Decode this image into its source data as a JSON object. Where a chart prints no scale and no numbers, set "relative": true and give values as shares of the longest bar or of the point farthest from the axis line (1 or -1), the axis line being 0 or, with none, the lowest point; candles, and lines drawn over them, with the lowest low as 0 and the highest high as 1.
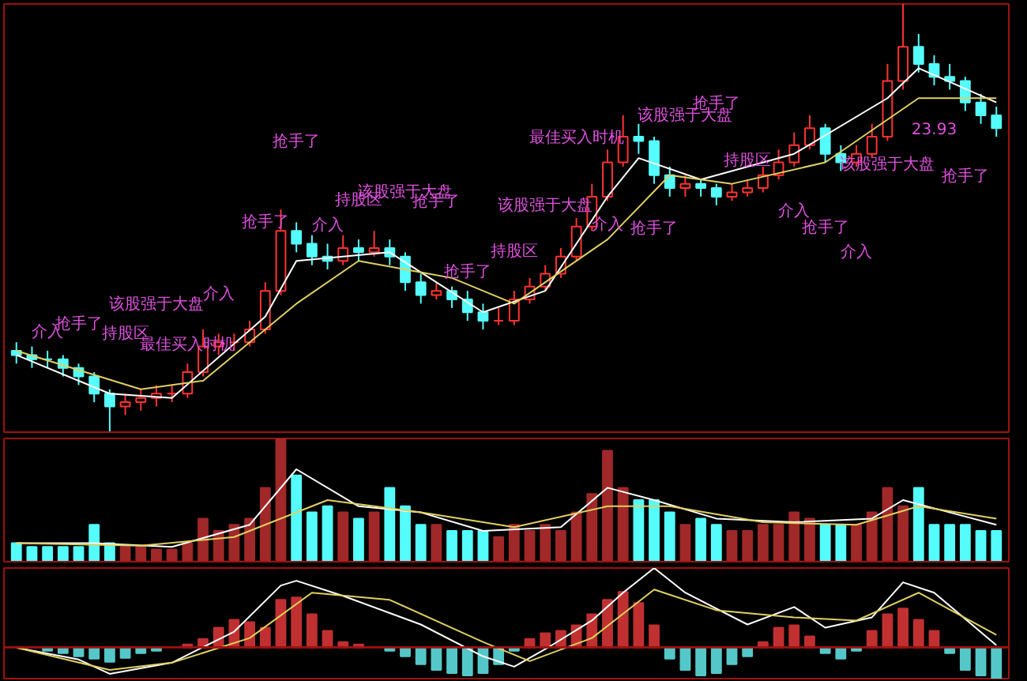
{
  "chart_data": [
    {
      "type": "candlestick",
      "relative": true,
      "categories": [
        null,
        null,
        null,
        null,
        null,
        null,
        null,
        null,
        null,
        null,
        null,
        null,
        null,
        null,
        null,
        null,
        null,
        null,
        null,
        null,
        null,
        null,
        null,
        null,
        null,
        null,
        null,
        null,
        null,
        null,
        null,
        null,
        null,
        null,
        null,
        null,
        null,
        null,
        null,
        null,
        null,
        null,
        null,
        null,
        null,
        null,
        null,
        null,
        null,
        null,
        null,
        null,
        null,
        null,
        null,
        null,
        null,
        null,
        null,
        null,
        null,
        null,
        null,
        null
      ],
      "ohlc": [
        [
          0.19,
          0.21,
          0.16,
          0.18
        ],
        [
          0.18,
          0.2,
          0.15,
          0.17
        ],
        [
          0.17,
          0.19,
          0.15,
          0.17
        ],
        [
          0.17,
          0.18,
          0.13,
          0.15
        ],
        [
          0.15,
          0.16,
          0.11,
          0.13
        ],
        [
          0.13,
          0.14,
          0.07,
          0.09
        ],
        [
          0.09,
          0.1,
          0,
          0.06
        ],
        [
          0.06,
          0.09,
          0.04,
          0.07
        ],
        [
          0.07,
          0.1,
          0.05,
          0.08
        ],
        [
          0.08,
          0.11,
          0.06,
          0.09
        ],
        [
          0.09,
          0.11,
          0.07,
          0.09
        ],
        [
          0.09,
          0.16,
          0.08,
          0.14
        ],
        [
          0.14,
          0.24,
          0.13,
          0.2
        ],
        [
          0.2,
          0.23,
          0.18,
          0.21
        ],
        [
          0.21,
          0.23,
          0.19,
          0.21
        ],
        [
          0.21,
          0.26,
          0.2,
          0.24
        ],
        [
          0.24,
          0.35,
          0.23,
          0.33
        ],
        [
          0.33,
          0.52,
          0.32,
          0.47
        ],
        [
          0.47,
          0.49,
          0.42,
          0.44
        ],
        [
          0.44,
          0.46,
          0.39,
          0.41
        ],
        [
          0.41,
          0.44,
          0.38,
          0.4
        ],
        [
          0.4,
          0.46,
          0.39,
          0.43
        ],
        [
          0.43,
          0.45,
          0.4,
          0.42
        ],
        [
          0.42,
          0.47,
          0.41,
          0.43
        ],
        [
          0.43,
          0.45,
          0.39,
          0.41
        ],
        [
          0.41,
          0.42,
          0.33,
          0.35
        ],
        [
          0.35,
          0.37,
          0.3,
          0.32
        ],
        [
          0.32,
          0.35,
          0.31,
          0.33
        ],
        [
          0.33,
          0.34,
          0.29,
          0.31
        ],
        [
          0.31,
          0.33,
          0.26,
          0.28
        ],
        [
          0.28,
          0.3,
          0.24,
          0.26
        ],
        [
          0.26,
          0.29,
          0.25,
          0.26
        ],
        [
          0.26,
          0.33,
          0.25,
          0.31
        ],
        [
          0.31,
          0.36,
          0.3,
          0.34
        ],
        [
          0.34,
          0.39,
          0.33,
          0.37
        ],
        [
          0.37,
          0.43,
          0.36,
          0.41
        ],
        [
          0.41,
          0.5,
          0.4,
          0.48
        ],
        [
          0.48,
          0.58,
          0.47,
          0.55
        ],
        [
          0.55,
          0.66,
          0.54,
          0.63
        ],
        [
          0.63,
          0.74,
          0.62,
          0.69
        ],
        [
          0.69,
          0.72,
          0.65,
          0.68
        ],
        [
          0.68,
          0.69,
          0.58,
          0.6
        ],
        [
          0.6,
          0.62,
          0.55,
          0.57
        ],
        [
          0.57,
          0.6,
          0.55,
          0.58
        ],
        [
          0.58,
          0.59,
          0.55,
          0.57
        ],
        [
          0.57,
          0.58,
          0.53,
          0.55
        ],
        [
          0.55,
          0.58,
          0.54,
          0.56
        ],
        [
          0.56,
          0.59,
          0.55,
          0.57
        ],
        [
          0.57,
          0.62,
          0.56,
          0.6
        ],
        [
          0.6,
          0.66,
          0.59,
          0.63
        ],
        [
          0.63,
          0.7,
          0.62,
          0.67
        ],
        [
          0.67,
          0.74,
          0.66,
          0.71
        ],
        [
          0.71,
          0.72,
          0.63,
          0.65
        ],
        [
          0.65,
          0.67,
          0.61,
          0.63
        ],
        [
          0.63,
          0.67,
          0.62,
          0.65
        ],
        [
          0.65,
          0.72,
          0.64,
          0.69
        ],
        [
          0.69,
          0.86,
          0.68,
          0.82
        ],
        [
          0.82,
          1,
          0.8,
          0.9
        ],
        [
          0.9,
          0.93,
          0.84,
          0.86
        ],
        [
          0.86,
          0.88,
          0.81,
          0.83
        ],
        [
          0.83,
          0.86,
          0.8,
          0.82
        ],
        [
          0.82,
          0.83,
          0.75,
          0.77
        ],
        [
          0.77,
          0.79,
          0.72,
          0.74
        ],
        [
          0.74,
          0.76,
          0.69,
          0.71
        ]
      ],
      "colors": [
        "#54fcfc",
        "#54fcfc",
        "#54fcfc",
        "#54fcfc",
        "#54fcfc",
        "#54fcfc",
        "#54fcfc",
        "#ff3232",
        "#ff3232",
        "#ff3232",
        "#ff3232",
        "#ff3232",
        "#ff3232",
        "#ff3232",
        "#ff3232",
        "#ff3232",
        "#ff3232",
        "#ff3232",
        "#54fcfc",
        "#54fcfc",
        "#54fcfc",
        "#ff3232",
        "#54fcfc",
        "#ff3232",
        "#54fcfc",
        "#54fcfc",
        "#54fcfc",
        "#ff3232",
        "#54fcfc",
        "#54fcfc",
        "#54fcfc",
        "#ff3232",
        "#ff3232",
        "#ff3232",
        "#ff3232",
        "#ff3232",
        "#ff3232",
        "#ff3232",
        "#ff3232",
        "#ff3232",
        "#54fcfc",
        "#54fcfc",
        "#54fcfc",
        "#ff3232",
        "#54fcfc",
        "#54fcfc",
        "#ff3232",
        "#ff3232",
        "#ff3232",
        "#ff3232",
        "#ff3232",
        "#ff3232",
        "#54fcfc",
        "#54fcfc",
        "#ff3232",
        "#ff3232",
        "#ff3232",
        "#ff3232",
        "#54fcfc",
        "#54fcfc",
        "#54fcfc",
        "#54fcfc",
        "#54fcfc",
        "#54fcfc"
      ],
      "series": [
        {
          "type": "line",
          "color": "#ffffff",
          "values": [
            0.18,
            null,
            null,
            null,
            null,
            null,
            0.09,
            null,
            null,
            null,
            0.08,
            null,
            null,
            null,
            null,
            null,
            0.27,
            null,
            0.4,
            null,
            null,
            null,
            null,
            null,
            0.42,
            null,
            null,
            null,
            null,
            null,
            0.28,
            null,
            null,
            null,
            0.33,
            null,
            null,
            null,
            0.55,
            null,
            0.64,
            null,
            null,
            null,
            0.59,
            null,
            null,
            null,
            null,
            null,
            0.65,
            null,
            null,
            null,
            null,
            null,
            0.78,
            null,
            0.85,
            null,
            null,
            null,
            null,
            0.77
          ]
        },
        {
          "type": "line",
          "color": "#e0d060",
          "values": [
            0.19,
            null,
            null,
            null,
            null,
            null,
            null,
            null,
            0.1,
            null,
            null,
            null,
            0.12,
            null,
            null,
            null,
            null,
            null,
            0.3,
            null,
            null,
            null,
            0.4,
            null,
            null,
            null,
            null,
            null,
            0.36,
            null,
            null,
            null,
            0.3,
            null,
            null,
            null,
            null,
            null,
            0.45,
            null,
            null,
            null,
            0.6,
            null,
            null,
            null,
            0.58,
            null,
            null,
            null,
            null,
            null,
            0.63,
            null,
            null,
            null,
            null,
            null,
            0.78,
            null,
            null,
            null,
            null,
            0.78
          ]
        }
      ],
      "annotations": [
        "介入",
        "抢手了",
        "持股区",
        "该股强于大盘",
        "最佳买入时机",
        "介入",
        "抢手了",
        "抢手了",
        "介入",
        "持股区",
        "该股强于大盘",
        "抢手了",
        "抢手了",
        "持股区",
        "该股强于大盘",
        "最佳买入时机",
        "介入",
        "抢手了",
        "该股强于大盘",
        "抢手了",
        "持股区",
        "介入",
        "抢手了",
        "介入",
        "该股强于大盘",
        "23.93",
        "抢手了"
      ]
    },
    {
      "type": "bar",
      "relative": true,
      "categories": [
        null,
        null,
        null,
        null,
        null,
        null,
        null,
        null,
        null,
        null,
        null,
        null,
        null,
        null,
        null,
        null,
        null,
        null,
        null,
        null,
        null,
        null,
        null,
        null,
        null,
        null,
        null,
        null,
        null,
        null,
        null,
        null,
        null,
        null,
        null,
        null,
        null,
        null,
        null,
        null,
        null,
        null,
        null,
        null,
        null,
        null,
        null,
        null,
        null,
        null,
        null,
        null,
        null,
        null,
        null,
        null,
        null,
        null,
        null,
        null,
        null,
        null,
        null,
        null
      ],
      "series": [
        {
          "type": "bar",
          "values": [
            0.15,
            0.12,
            0.12,
            0.12,
            0.12,
            0.3,
            0.15,
            0.12,
            0.12,
            0.1,
            0.1,
            0.15,
            0.35,
            0.25,
            0.3,
            0.35,
            0.6,
            1,
            0.7,
            0.4,
            0.45,
            0.4,
            0.35,
            0.4,
            0.6,
            0.45,
            0.3,
            0.3,
            0.25,
            0.25,
            0.25,
            0.2,
            0.3,
            0.25,
            0.3,
            0.25,
            0.4,
            0.55,
            0.9,
            0.6,
            0.5,
            0.5,
            0.4,
            0.3,
            0.35,
            0.3,
            0.25,
            0.25,
            0.3,
            0.3,
            0.4,
            0.35,
            0.3,
            0.3,
            0.3,
            0.4,
            0.6,
            0.45,
            0.6,
            0.3,
            0.3,
            0.3,
            0.25,
            0.25
          ],
          "colors": [
            "#54fcfc",
            "#54fcfc",
            "#54fcfc",
            "#54fcfc",
            "#54fcfc",
            "#54fcfc",
            "#54fcfc",
            "#a02828",
            "#a02828",
            "#a02828",
            "#a02828",
            "#a02828",
            "#a02828",
            "#a02828",
            "#a02828",
            "#a02828",
            "#a02828",
            "#a02828",
            "#54fcfc",
            "#54fcfc",
            "#54fcfc",
            "#a02828",
            "#54fcfc",
            "#a02828",
            "#54fcfc",
            "#54fcfc",
            "#54fcfc",
            "#a02828",
            "#54fcfc",
            "#54fcfc",
            "#54fcfc",
            "#a02828",
            "#a02828",
            "#a02828",
            "#a02828",
            "#a02828",
            "#a02828",
            "#a02828",
            "#a02828",
            "#a02828",
            "#54fcfc",
            "#54fcfc",
            "#54fcfc",
            "#a02828",
            "#54fcfc",
            "#54fcfc",
            "#a02828",
            "#a02828",
            "#a02828",
            "#a02828",
            "#a02828",
            "#a02828",
            "#54fcfc",
            "#54fcfc",
            "#a02828",
            "#a02828",
            "#a02828",
            "#a02828",
            "#54fcfc",
            "#54fcfc",
            "#54fcfc",
            "#54fcfc",
            "#54fcfc",
            "#54fcfc"
          ]
        },
        {
          "type": "line",
          "color": "#ffffff",
          "values": [
            0.15,
            null,
            null,
            null,
            null,
            0.15,
            null,
            null,
            null,
            null,
            0.12,
            null,
            null,
            null,
            null,
            0.3,
            null,
            null,
            0.75,
            null,
            null,
            null,
            0.45,
            null,
            null,
            null,
            0.4,
            null,
            null,
            null,
            0.25,
            null,
            null,
            null,
            null,
            0.28,
            null,
            null,
            0.6,
            null,
            null,
            0.5,
            null,
            null,
            null,
            0.35,
            null,
            null,
            null,
            null,
            0.32,
            null,
            null,
            null,
            null,
            0.35,
            null,
            0.5,
            null,
            null,
            0.4,
            null,
            null,
            0.3
          ]
        },
        {
          "type": "line",
          "color": "#e0d060",
          "values": [
            0.15,
            null,
            null,
            null,
            null,
            null,
            null,
            null,
            0.13,
            null,
            null,
            null,
            null,
            null,
            0.2,
            null,
            null,
            null,
            null,
            null,
            0.5,
            null,
            null,
            null,
            null,
            null,
            0.4,
            null,
            null,
            null,
            null,
            null,
            0.28,
            null,
            null,
            null,
            null,
            null,
            0.45,
            null,
            null,
            null,
            0.45,
            null,
            null,
            null,
            null,
            null,
            0.32,
            null,
            null,
            null,
            null,
            null,
            0.3,
            null,
            null,
            null,
            0.45,
            null,
            null,
            null,
            null,
            0.35
          ]
        }
      ]
    },
    {
      "type": "bar",
      "relative": true,
      "ref_lines": [
        {
          "axis": "y",
          "value": 0,
          "color": "#a01010"
        }
      ],
      "categories": [
        null,
        null,
        null,
        null,
        null,
        null,
        null,
        null,
        null,
        null,
        null,
        null,
        null,
        null,
        null,
        null,
        null,
        null,
        null,
        null,
        null,
        null,
        null,
        null,
        null,
        null,
        null,
        null,
        null,
        null,
        null,
        null,
        null,
        null,
        null,
        null,
        null,
        null,
        null,
        null,
        null,
        null,
        null,
        null,
        null,
        null,
        null,
        null,
        null,
        null,
        null,
        null,
        null,
        null,
        null,
        null,
        null,
        null,
        null,
        null,
        null,
        null,
        null,
        null
      ],
      "series": [
        {
          "type": "bar",
          "color": "#c03030",
          "values": [
            null,
            null,
            null,
            null,
            null,
            null,
            null,
            null,
            null,
            null,
            null,
            0.04,
            0.11,
            0.25,
            0.35,
            0.32,
            0.25,
            0.6,
            0.63,
            0.42,
            0.21,
            0.07,
            0.04,
            null,
            null,
            null,
            null,
            null,
            null,
            null,
            null,
            null,
            null,
            0.11,
            0.18,
            0.21,
            0.28,
            0.42,
            0.6,
            0.7,
            0.56,
            0.28,
            null,
            null,
            null,
            null,
            null,
            null,
            0.07,
            0.25,
            0.28,
            0.14,
            null,
            null,
            null,
            0.21,
            0.42,
            0.49,
            0.35,
            0.21,
            null,
            null,
            null,
            null
          ]
        },
        {
          "type": "bar",
          "color": "#54c8c8",
          "values": [
            null,
            null,
            -0.04,
            -0.07,
            -0.11,
            -0.14,
            -0.18,
            -0.13,
            -0.07,
            -0.04,
            null,
            null,
            null,
            null,
            null,
            null,
            null,
            null,
            null,
            null,
            null,
            null,
            null,
            null,
            -0.04,
            -0.11,
            -0.21,
            -0.28,
            -0.32,
            -0.35,
            -0.32,
            -0.21,
            -0.04,
            null,
            null,
            null,
            null,
            null,
            null,
            null,
            null,
            null,
            -0.14,
            -0.28,
            -0.35,
            -0.32,
            -0.21,
            -0.11,
            null,
            null,
            null,
            null,
            -0.07,
            -0.14,
            -0.04,
            null,
            null,
            null,
            null,
            null,
            -0.07,
            -0.28,
            -0.35,
            -0.39
          ]
        },
        {
          "type": "line",
          "color": "#ffffff",
          "values": [
            0,
            null,
            null,
            null,
            -0.15,
            null,
            -0.33,
            null,
            null,
            null,
            -0.19,
            null,
            null,
            null,
            0.2,
            null,
            null,
            0.78,
            0.84,
            null,
            null,
            0.65,
            null,
            null,
            null,
            null,
            0.29,
            null,
            null,
            null,
            -0.11,
            null,
            -0.24,
            null,
            -0.02,
            null,
            null,
            0.34,
            null,
            0.69,
            null,
            1,
            null,
            0.69,
            null,
            null,
            null,
            0.29,
            null,
            null,
            0.51,
            null,
            0.25,
            null,
            null,
            0.38,
            null,
            0.82,
            null,
            0.69,
            null,
            null,
            null,
            0.03
          ]
        },
        {
          "type": "line",
          "color": "#e0d060",
          "values": [
            0,
            null,
            null,
            null,
            null,
            null,
            -0.28,
            null,
            null,
            null,
            -0.19,
            null,
            null,
            null,
            null,
            0.12,
            null,
            null,
            null,
            0.69,
            null,
            null,
            null,
            null,
            0.6,
            null,
            null,
            null,
            null,
            null,
            0.07,
            null,
            null,
            -0.17,
            null,
            null,
            null,
            0.12,
            null,
            null,
            null,
            0.73,
            null,
            null,
            null,
            0.47,
            null,
            null,
            null,
            null,
            0.38,
            null,
            null,
            null,
            0.34,
            null,
            null,
            null,
            0.69,
            null,
            null,
            null,
            null,
            0.16
          ]
        }
      ]
    }
  ]
}
